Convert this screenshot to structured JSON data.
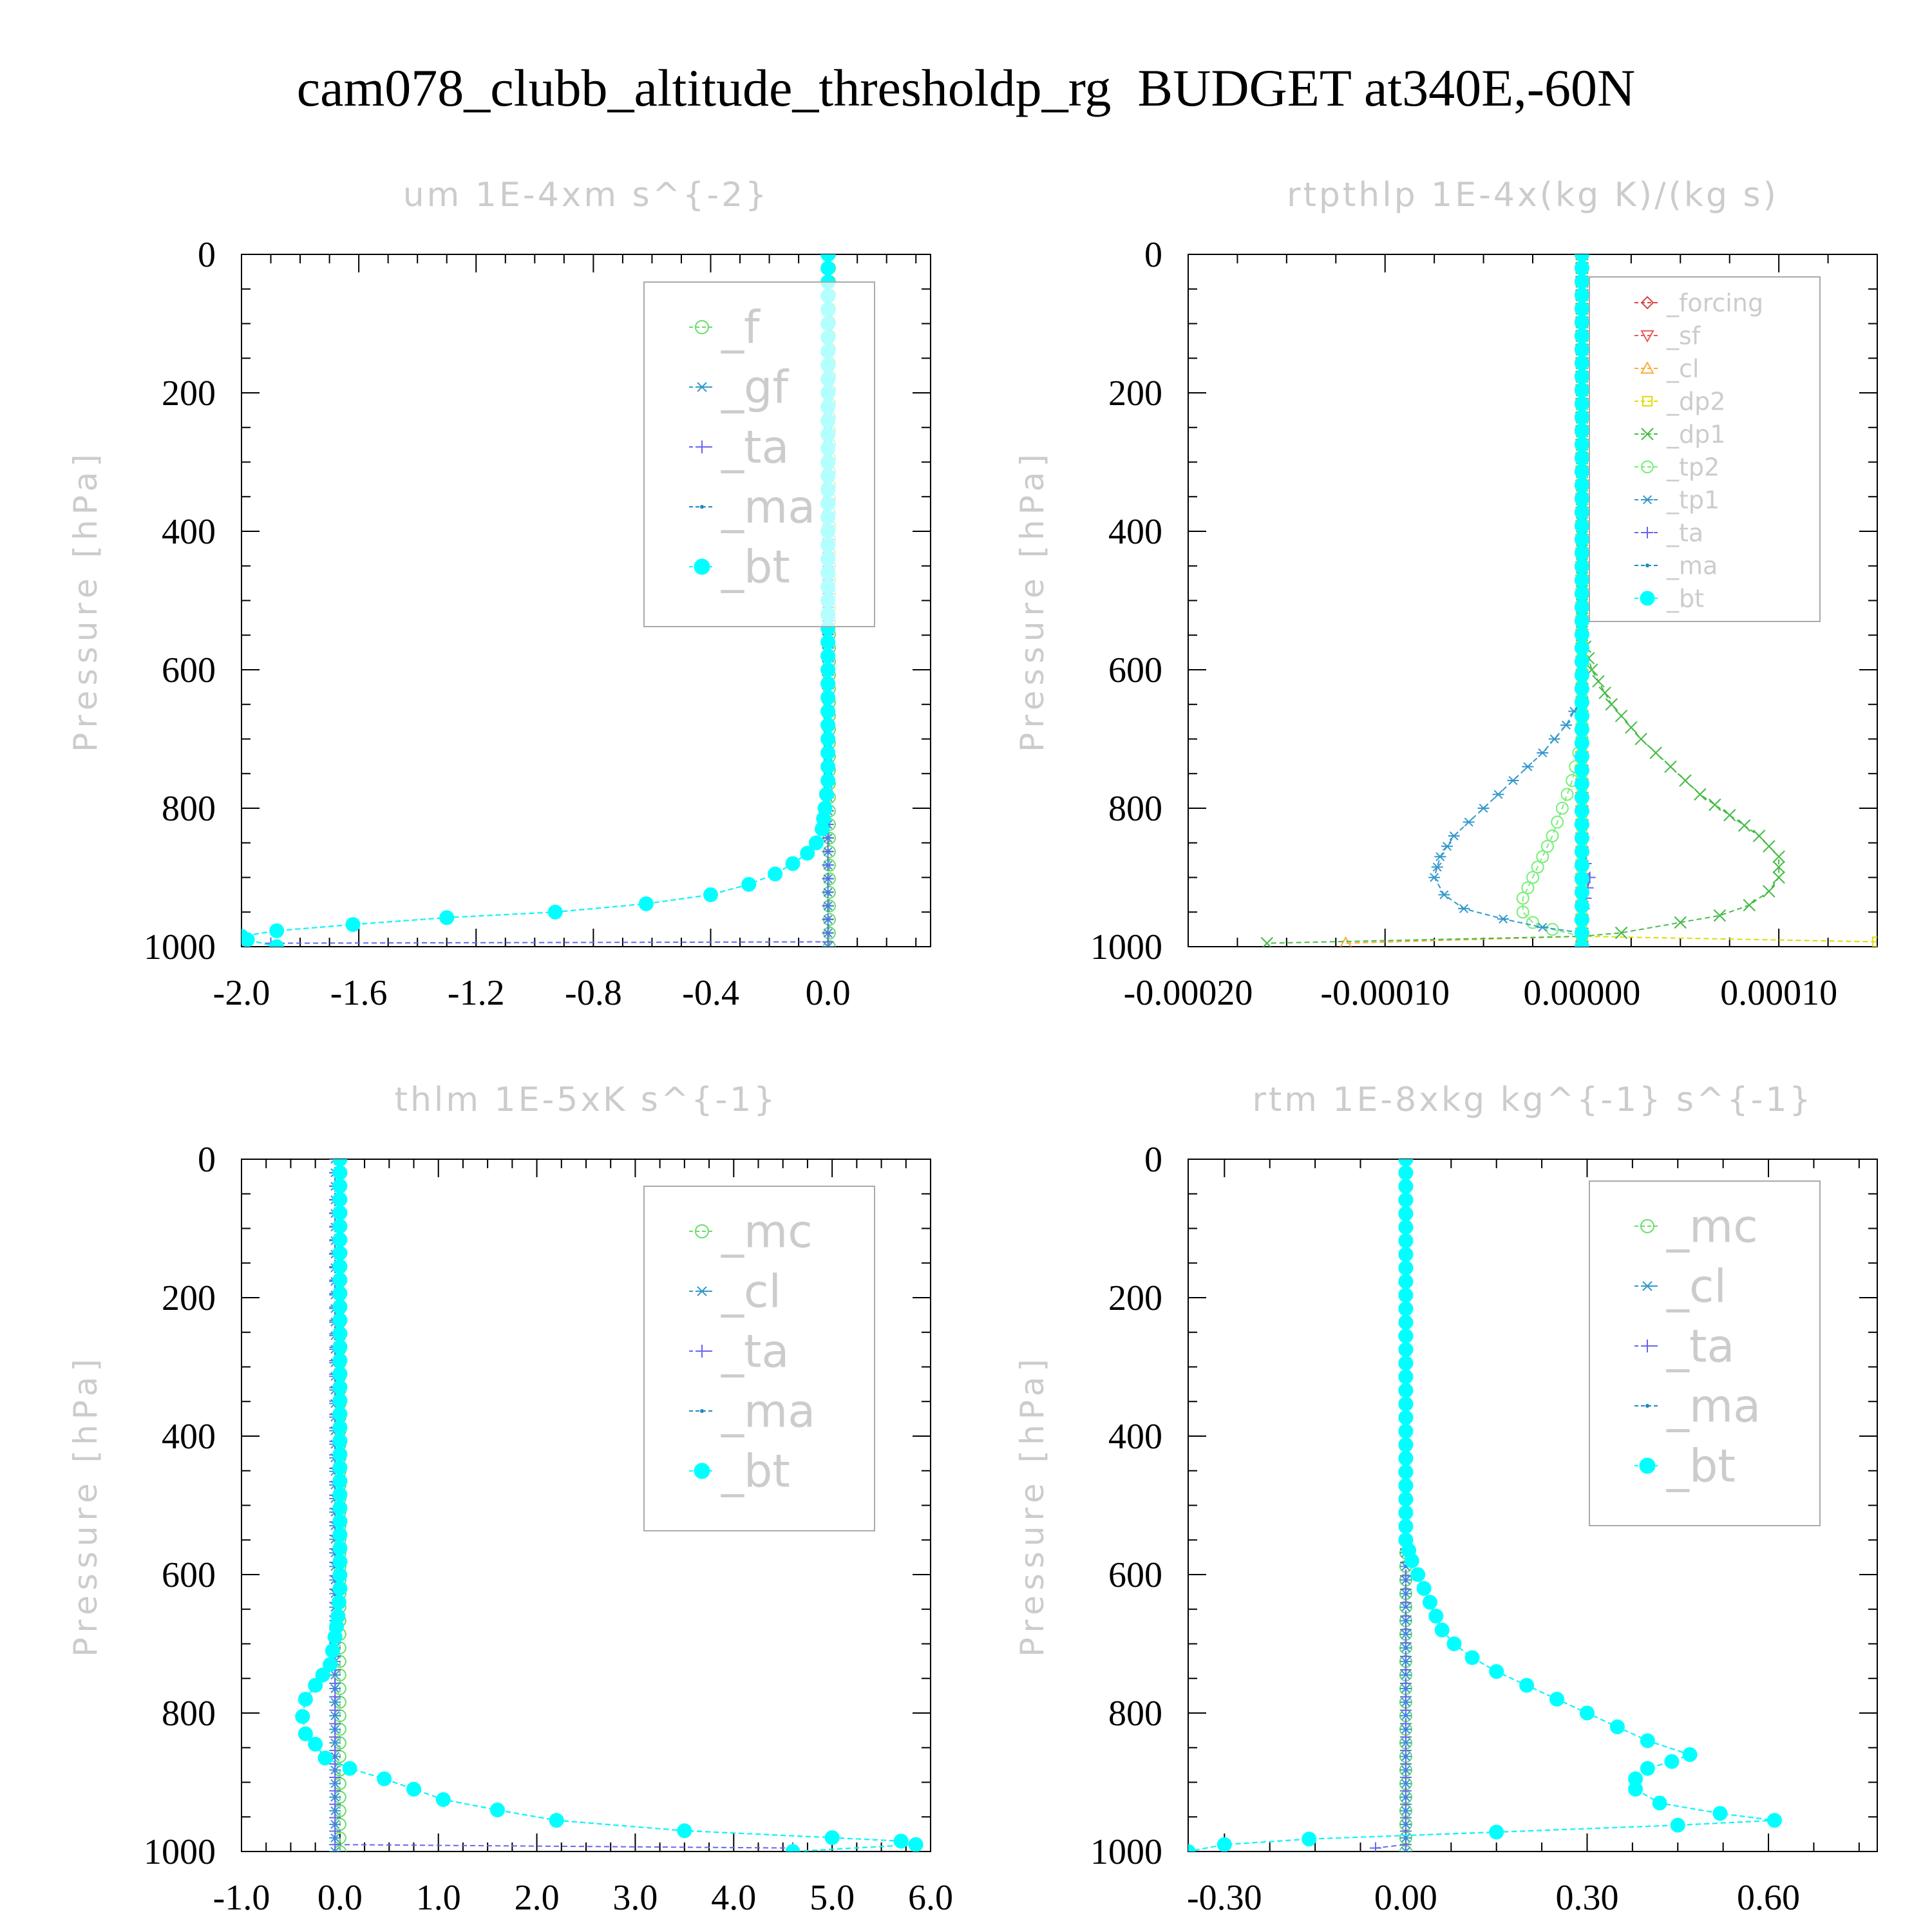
{
  "title": "cam078_clubb_altitude_thresholdp_rg  BUDGET at340E,-60N",
  "chart_data": [
    {
      "type": "line",
      "title": "um  1E-4xm s^{-2}",
      "ylabel": "Pressure [hPa]",
      "xlim": [
        -2.0,
        0.35
      ],
      "ylim": [
        1000,
        0
      ],
      "xticks": [
        -2.0,
        -1.6,
        -1.2,
        -0.8,
        -0.4,
        0.0
      ],
      "xtick_labels": [
        "-2.0",
        "-1.6",
        "-1.2",
        "-0.8",
        "-0.4",
        "0.0"
      ],
      "yticks": [
        0,
        200,
        400,
        600,
        800,
        1000
      ],
      "ytick_labels": [
        "0",
        "200",
        "400",
        "600",
        "800",
        "1000"
      ],
      "legend": "top-right",
      "series": [
        {
          "name": "_f",
          "color": "#66dd66",
          "marker": "circle",
          "x": [
            0.005,
            0.005
          ],
          "y": [
            0,
            1000
          ]
        },
        {
          "name": "_gf",
          "color": "#3399cc",
          "marker": "star",
          "x": [
            0.0,
            0.0
          ],
          "y": [
            0,
            1000
          ]
        },
        {
          "name": "_ta",
          "color": "#6666ee",
          "marker": "plus",
          "x": [
            0.0,
            0.0,
            0.0,
            -1.9
          ],
          "y": [
            0,
            980,
            993,
            995
          ]
        },
        {
          "name": "_ma",
          "color": "#2288bb",
          "marker": "dot",
          "x": [
            0.0,
            0.0,
            0.0,
            0.0,
            -0.01,
            -0.02,
            -0.04,
            -0.07,
            -0.12,
            -0.18,
            -0.27,
            -0.4,
            -0.62,
            -0.93,
            -1.3,
            -1.62,
            -1.88,
            -2.0,
            -1.98,
            -1.88
          ],
          "y": [
            0,
            400,
            600,
            760,
            800,
            830,
            850,
            865,
            880,
            895,
            910,
            925,
            938,
            950,
            958,
            968,
            977,
            985,
            990,
            1000
          ]
        },
        {
          "name": "_bt",
          "color": "#00ffff",
          "marker": "filled-circle",
          "x": [
            0.0,
            0.0,
            0.0,
            0.0,
            -0.01,
            -0.02,
            -0.04,
            -0.07,
            -0.12,
            -0.18,
            -0.27,
            -0.4,
            -0.62,
            -0.93,
            -1.3,
            -1.62,
            -1.88,
            -2.0,
            -1.98,
            -1.88
          ],
          "y": [
            0,
            400,
            600,
            760,
            800,
            830,
            850,
            865,
            880,
            895,
            910,
            925,
            938,
            950,
            958,
            968,
            977,
            985,
            990,
            1000
          ]
        }
      ]
    },
    {
      "type": "line",
      "title": "rtpthlp  1E-4x(kg K)/(kg s)",
      "ylabel": "Pressure [hPa]",
      "xlim": [
        -0.0002,
        0.00015
      ],
      "ylim": [
        1000,
        0
      ],
      "xticks": [
        -0.0002,
        -0.0001,
        0.0,
        0.0001
      ],
      "xtick_labels": [
        "-0.00020",
        "-0.00010",
        "0.00000",
        "0.00010"
      ],
      "yticks": [
        0,
        200,
        400,
        600,
        800,
        1000
      ],
      "ytick_labels": [
        "0",
        "200",
        "400",
        "600",
        "800",
        "1000"
      ],
      "legend": "top-right",
      "series": [
        {
          "name": "_forcing",
          "color": "#dd4444",
          "marker": "diamond",
          "x": [
            0.0,
            0.0
          ],
          "y": [
            0,
            1000
          ]
        },
        {
          "name": "_sf",
          "color": "#ee5555",
          "marker": "triangle-down",
          "x": [
            0.0,
            0.0
          ],
          "y": [
            0,
            1000
          ]
        },
        {
          "name": "_cl",
          "color": "#ffaa33",
          "marker": "triangle-up",
          "x": [
            0.0,
            0.0,
            0.0,
            -0.00012
          ],
          "y": [
            0,
            975,
            985,
            995
          ]
        },
        {
          "name": "_dp2",
          "color": "#dddd00",
          "marker": "square",
          "x": [
            0.0,
            0.0,
            0.0,
            0.00015
          ],
          "y": [
            0,
            975,
            985,
            993
          ]
        },
        {
          "name": "_dp1",
          "color": "#44bb44",
          "marker": "cross",
          "x": [
            0.0,
            0.0,
            5e-06,
            1.5e-05,
            3e-05,
            4.5e-05,
            6e-05,
            7.5e-05,
            9e-05,
            0.0001,
            0.0001,
            9.5e-05,
            8.5e-05,
            7e-05,
            5e-05,
            2e-05,
            0.0,
            -0.00016
          ],
          "y": [
            0,
            550,
            600,
            650,
            700,
            740,
            780,
            810,
            840,
            870,
            900,
            920,
            940,
            955,
            965,
            980,
            985,
            995
          ]
        },
        {
          "name": "_tp2",
          "color": "#77ee77",
          "marker": "circle",
          "x": [
            0.0,
            0.0,
            -5e-06,
            -1e-05,
            -1.5e-05,
            -2e-05,
            -2.5e-05,
            -3e-05,
            -3e-05,
            -2.5e-05,
            -1.5e-05,
            0.0
          ],
          "y": [
            0,
            700,
            760,
            800,
            840,
            870,
            900,
            930,
            950,
            965,
            975,
            985
          ]
        },
        {
          "name": "_tp1",
          "color": "#3399cc",
          "marker": "star",
          "x": [
            0.0,
            0.0,
            -8e-06,
            -2e-05,
            -3.5e-05,
            -5e-05,
            -6.5e-05,
            -7.2e-05,
            -7.5e-05,
            -7e-05,
            -6e-05,
            -4e-05,
            -2e-05,
            0.0
          ],
          "y": [
            0,
            640,
            680,
            720,
            760,
            800,
            840,
            870,
            900,
            925,
            945,
            960,
            972,
            980
          ]
        },
        {
          "name": "_ta",
          "color": "#6666ee",
          "marker": "plus",
          "x": [
            0.0,
            0.0,
            2e-06,
            4e-06,
            2e-06,
            0.0
          ],
          "y": [
            0,
            860,
            880,
            900,
            930,
            960
          ]
        },
        {
          "name": "_ma",
          "color": "#2288bb",
          "marker": "dot",
          "x": [
            0.0,
            0.0
          ],
          "y": [
            0,
            1000
          ]
        },
        {
          "name": "_bt",
          "color": "#00ffff",
          "marker": "filled-circle",
          "x": [
            0.0,
            0.0
          ],
          "y": [
            0,
            1000
          ]
        }
      ]
    },
    {
      "type": "line",
      "title": "thlm  1E-5xK s^{-1}",
      "ylabel": "Pressure [hPa]",
      "xlim": [
        -1.0,
        6.0
      ],
      "ylim": [
        1000,
        0
      ],
      "xticks": [
        -1.0,
        0.0,
        1.0,
        2.0,
        3.0,
        4.0,
        5.0,
        6.0
      ],
      "xtick_labels": [
        "-1.0",
        "0.0",
        "1.0",
        "2.0",
        "3.0",
        "4.0",
        "5.0",
        "6.0"
      ],
      "yticks": [
        0,
        200,
        400,
        600,
        800,
        1000
      ],
      "ytick_labels": [
        "0",
        "200",
        "400",
        "600",
        "800",
        "1000"
      ],
      "legend": "top-right",
      "series": [
        {
          "name": "_mc",
          "color": "#66dd66",
          "marker": "circle",
          "x": [
            0.0,
            0.0
          ],
          "y": [
            0,
            1000
          ]
        },
        {
          "name": "_cl",
          "color": "#3399cc",
          "marker": "star",
          "x": [
            -0.05,
            -0.05
          ],
          "y": [
            0,
            1000
          ]
        },
        {
          "name": "_ta",
          "color": "#6666ee",
          "marker": "plus",
          "x": [
            -0.05,
            -0.05,
            4.6
          ],
          "y": [
            0,
            990,
            995
          ]
        },
        {
          "name": "_ma",
          "color": "#2288bb",
          "marker": "dot",
          "x": [
            0.0,
            0.0,
            -0.02,
            -0.05,
            -0.1,
            -0.25,
            -0.35,
            -0.38,
            -0.35,
            -0.25,
            -0.15,
            0.1,
            0.45,
            0.75,
            1.05,
            1.6,
            2.2,
            3.5,
            5.0,
            5.7,
            5.85,
            4.6
          ],
          "y": [
            0,
            620,
            660,
            690,
            730,
            760,
            780,
            805,
            830,
            845,
            865,
            880,
            895,
            910,
            925,
            940,
            955,
            970,
            980,
            985,
            990,
            1000
          ]
        },
        {
          "name": "_bt",
          "color": "#00ffff",
          "marker": "filled-circle",
          "x": [
            0.0,
            0.0,
            -0.02,
            -0.05,
            -0.1,
            -0.25,
            -0.35,
            -0.38,
            -0.35,
            -0.25,
            -0.15,
            0.1,
            0.45,
            0.75,
            1.05,
            1.6,
            2.2,
            3.5,
            5.0,
            5.7,
            5.85,
            4.6
          ],
          "y": [
            0,
            620,
            660,
            690,
            730,
            760,
            780,
            805,
            830,
            845,
            865,
            880,
            895,
            910,
            925,
            940,
            955,
            970,
            980,
            985,
            990,
            1000
          ]
        }
      ]
    },
    {
      "type": "line",
      "title": "rtm  1E-8xkg kg^{-1} s^{-1}",
      "ylabel": "Pressure [hPa]",
      "xlim": [
        -0.36,
        0.78
      ],
      "ylim": [
        1000,
        0
      ],
      "xticks": [
        -0.3,
        0.0,
        0.3,
        0.6
      ],
      "xtick_labels": [
        "-0.30",
        "0.00",
        "0.30",
        "0.60"
      ],
      "yticks": [
        0,
        200,
        400,
        600,
        800,
        1000
      ],
      "ytick_labels": [
        "0",
        "200",
        "400",
        "600",
        "800",
        "1000"
      ],
      "legend": "top-right",
      "series": [
        {
          "name": "_mc",
          "color": "#66dd66",
          "marker": "circle",
          "x": [
            0.0,
            0.0
          ],
          "y": [
            0,
            1000
          ]
        },
        {
          "name": "_cl",
          "color": "#3399cc",
          "marker": "star",
          "x": [
            0.0,
            0.0
          ],
          "y": [
            0,
            1000
          ]
        },
        {
          "name": "_ta",
          "color": "#6666ee",
          "marker": "plus",
          "x": [
            0.0,
            0.0,
            -0.05
          ],
          "y": [
            0,
            990,
            995
          ]
        },
        {
          "name": "_ma",
          "color": "#2288bb",
          "marker": "dot",
          "x": [
            0.0,
            0.0,
            0.01,
            0.02,
            0.03,
            0.04,
            0.05,
            0.06,
            0.08,
            0.11,
            0.15,
            0.2,
            0.25,
            0.3,
            0.35,
            0.4,
            0.47,
            0.44,
            0.4,
            0.38,
            0.38,
            0.42,
            0.52,
            0.61,
            0.45,
            0.15,
            -0.16,
            -0.3,
            -0.36
          ],
          "y": [
            0,
            550,
            580,
            600,
            620,
            640,
            660,
            680,
            700,
            720,
            740,
            760,
            780,
            800,
            820,
            840,
            860,
            870,
            880,
            895,
            910,
            930,
            945,
            955,
            962,
            972,
            982,
            990,
            1000
          ]
        },
        {
          "name": "_bt",
          "color": "#00ffff",
          "marker": "filled-circle",
          "x": [
            0.0,
            0.0,
            0.01,
            0.02,
            0.03,
            0.04,
            0.05,
            0.06,
            0.08,
            0.11,
            0.15,
            0.2,
            0.25,
            0.3,
            0.35,
            0.4,
            0.47,
            0.44,
            0.4,
            0.38,
            0.38,
            0.42,
            0.52,
            0.61,
            0.45,
            0.15,
            -0.16,
            -0.3,
            -0.36
          ],
          "y": [
            0,
            550,
            580,
            600,
            620,
            640,
            660,
            680,
            700,
            720,
            740,
            760,
            780,
            800,
            820,
            840,
            860,
            870,
            880,
            895,
            910,
            930,
            945,
            955,
            962,
            972,
            982,
            990,
            1000
          ]
        }
      ]
    }
  ]
}
